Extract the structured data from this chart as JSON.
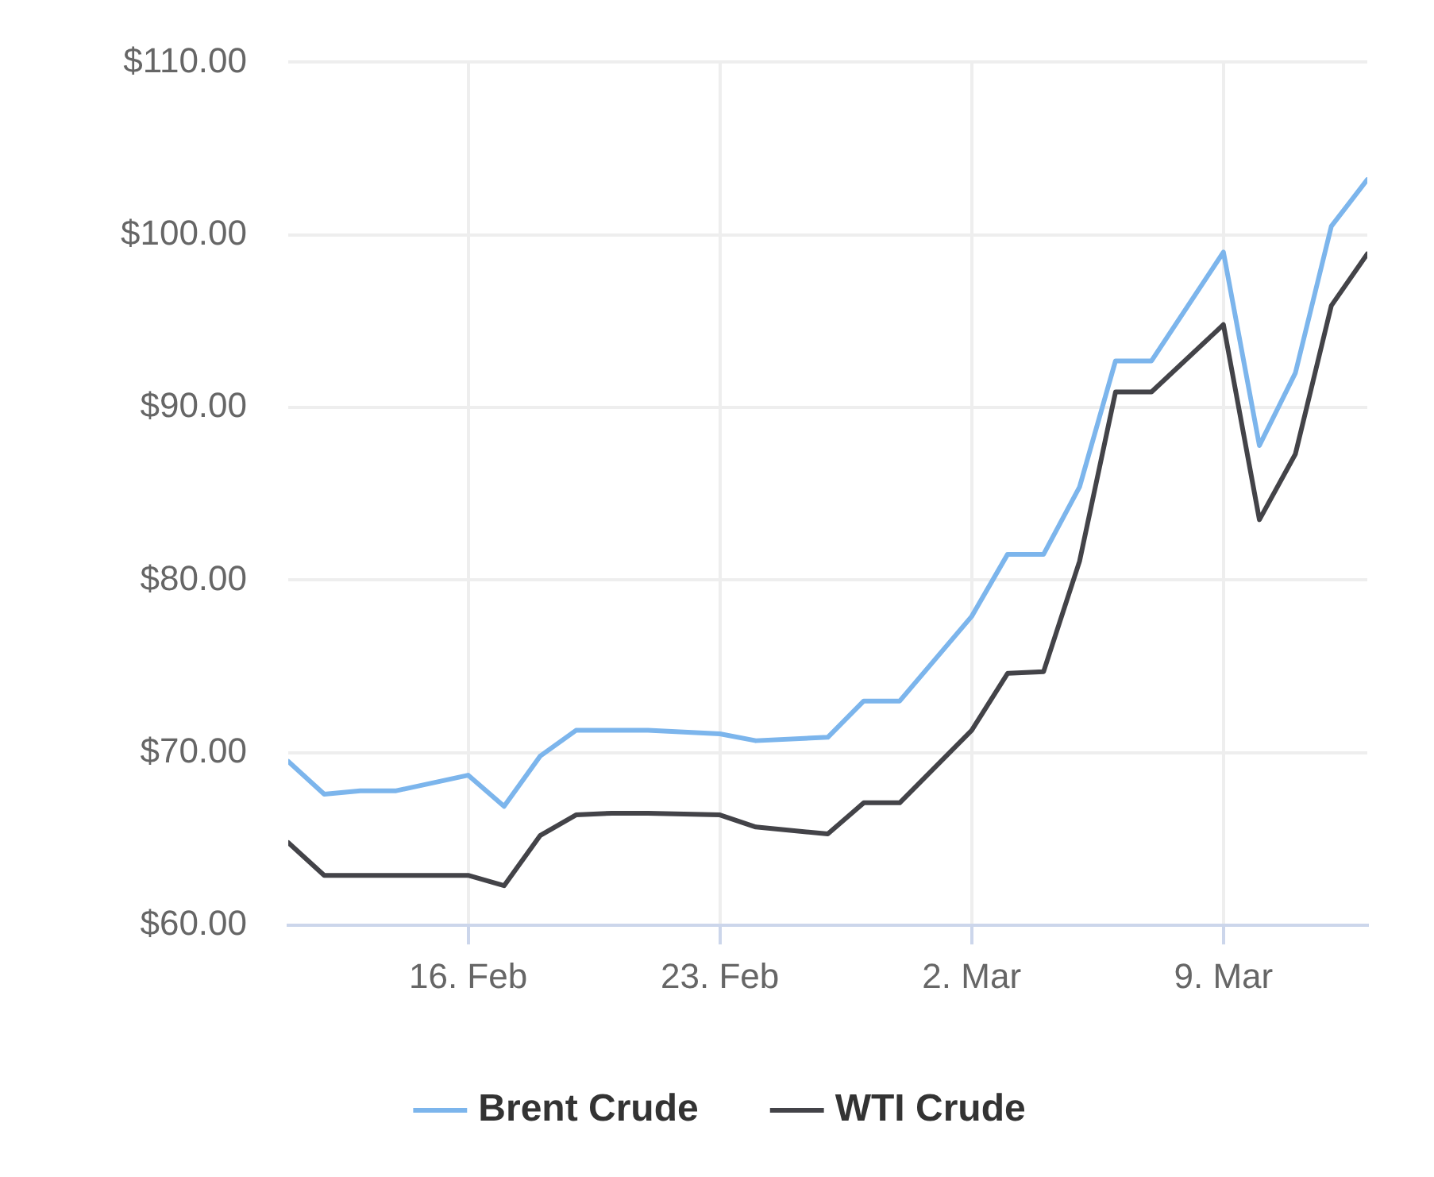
{
  "chart_data": {
    "type": "line",
    "x": [
      "--02-11",
      "--02-12",
      "--02-13",
      "--02-14",
      "--02-16",
      "--02-17",
      "--02-18",
      "--02-19",
      "--02-20",
      "--02-21",
      "--02-23",
      "--02-24",
      "--02-26",
      "--02-27",
      "--02-28",
      "--03-02",
      "--03-03",
      "--03-04",
      "--03-05",
      "--03-06",
      "--03-07",
      "--03-09",
      "--03-10",
      "--03-11",
      "--03-12",
      "--03-13"
    ],
    "series": [
      {
        "name": "Brent Crude",
        "color": "#7cb5ec",
        "values": [
          69.5,
          67.6,
          67.8,
          67.8,
          68.7,
          66.9,
          69.8,
          71.3,
          71.3,
          71.3,
          71.1,
          70.7,
          70.9,
          73.0,
          73.0,
          77.9,
          81.5,
          81.5,
          85.4,
          92.7,
          92.7,
          99.0,
          87.8,
          92.0,
          100.5,
          103.2
        ]
      },
      {
        "name": "WTI Crude",
        "color": "#434348",
        "values": [
          64.8,
          62.9,
          62.9,
          62.9,
          62.9,
          62.3,
          65.2,
          66.4,
          66.5,
          66.5,
          66.4,
          65.7,
          65.3,
          67.1,
          67.1,
          71.3,
          74.6,
          74.7,
          81.1,
          90.9,
          90.9,
          94.8,
          83.5,
          87.3,
          95.9,
          98.9
        ]
      }
    ],
    "xlim": [
      "--02-11",
      "--03-13"
    ],
    "xticks": [
      {
        "value": "--02-16",
        "label": "16. Feb"
      },
      {
        "value": "--02-23",
        "label": "23. Feb"
      },
      {
        "value": "--03-02",
        "label": "2. Mar"
      },
      {
        "value": "--03-09",
        "label": "9. Mar"
      }
    ],
    "ylim": [
      60,
      110
    ],
    "yticks": [
      {
        "value": 60,
        "label": "$60.00"
      },
      {
        "value": 70,
        "label": "$70.00"
      },
      {
        "value": 80,
        "label": "$80.00"
      },
      {
        "value": 90,
        "label": "$90.00"
      },
      {
        "value": 100,
        "label": "$100.00"
      },
      {
        "value": 110,
        "label": "$110.00"
      }
    ],
    "grid": true,
    "legend": "bottom",
    "marker": "none",
    "line_style": "solid"
  }
}
